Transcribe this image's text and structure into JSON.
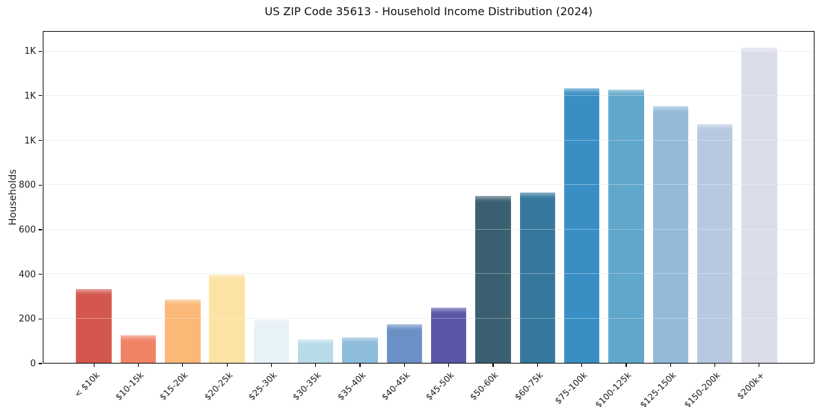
{
  "header": {
    "title": "US ZIP Code 35613 - Household Income Distribution (2024)"
  },
  "colors": {
    "background": "#ffffff",
    "axis": "#000000",
    "gridline": "#e9e9e9",
    "text": "#1a1a1a"
  },
  "chart_data": {
    "type": "bar",
    "title": "US ZIP Code 35613 - Household Income Distribution (2024)",
    "xlabel": "",
    "ylabel": "Households",
    "legend": "none",
    "grid": "horizontal",
    "ylim": [
      0,
      1490
    ],
    "categories": [
      "< $10k",
      "$10-15k",
      "$15-20k",
      "$20-25k",
      "$25-30k",
      "$30-35k",
      "$35-40k",
      "$40-45k",
      "$45-50k",
      "$50-60k",
      "$60-75k",
      "$75-100k",
      "$100-125k",
      "$125-150k",
      "$150-200k",
      "$200k+"
    ],
    "values": [
      332,
      125,
      287,
      396,
      196,
      106,
      116,
      175,
      248,
      750,
      766,
      1236,
      1229,
      1155,
      1074,
      1418
    ],
    "bar_colors": [
      "#d4574e",
      "#f08365",
      "#fbb877",
      "#fde3a3",
      "#e7f2f6",
      "#b7dbe9",
      "#8dbcda",
      "#6b90c5",
      "#5a55a8",
      "#3a5f70",
      "#35789c",
      "#398fc4",
      "#5fa7cb",
      "#94bad8",
      "#b7c8e0",
      "#dadcea"
    ],
    "yticks": {
      "values": [
        0,
        200,
        400,
        600,
        800,
        1000,
        1200,
        1400
      ],
      "labels": [
        "0",
        "200",
        "400",
        "600",
        "800",
        "1K",
        "1K",
        "1K"
      ]
    }
  }
}
